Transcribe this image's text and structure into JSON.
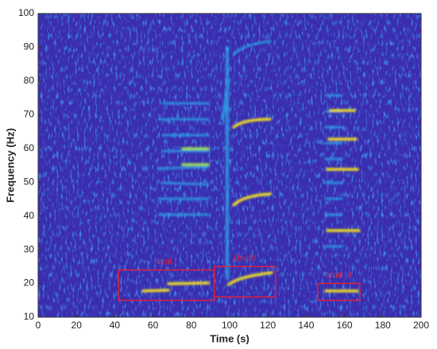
{
  "chart_data": {
    "type": "spectrogram",
    "x_label": "Time (s)",
    "y_label": "Frequency (Hz)",
    "xlim": [
      0,
      200
    ],
    "ylim": [
      10,
      100
    ],
    "xticks": [
      0,
      20,
      40,
      60,
      80,
      100,
      120,
      140,
      160,
      180,
      200
    ],
    "yticks": [
      10,
      20,
      30,
      40,
      50,
      60,
      70,
      80,
      90,
      100
    ],
    "annotations": [
      {
        "label": "Unit I",
        "x": [
          42,
          92
        ],
        "y": [
          15,
          24
        ],
        "color": "#e0203a"
      },
      {
        "label": "Unit II",
        "x": [
          92,
          124
        ],
        "y": [
          16,
          25
        ],
        "color": "#e0203a"
      },
      {
        "label": "Unit III",
        "x": [
          146,
          168
        ],
        "y": [
          15,
          20
        ],
        "color": "#e0203a"
      }
    ]
  }
}
